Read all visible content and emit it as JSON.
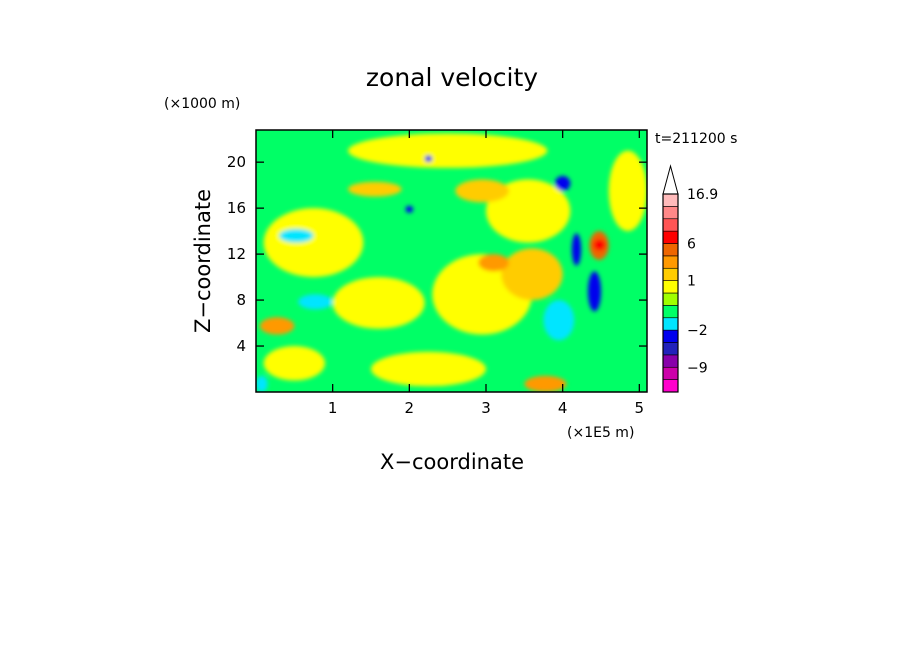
{
  "chart_data": {
    "type": "heatmap",
    "title": "zonal velocity",
    "xlabel": "X−coordinate",
    "ylabel": "Z−coordinate",
    "x_unit_label": "(×1E5 m)",
    "y_unit_label": "(×1000 m)",
    "time_label": "t=211200 s",
    "xlim": [
      0,
      5.1
    ],
    "ylim": [
      0,
      22.8
    ],
    "x_ticks": [
      1,
      2,
      3,
      4,
      5
    ],
    "y_ticks": [
      4,
      8,
      12,
      16,
      20
    ],
    "colorbar_labels": [
      {
        "text": "16.9",
        "value": 16.9
      },
      {
        "text": "6",
        "value": 6
      },
      {
        "text": "1",
        "value": 1
      },
      {
        "text": "−2",
        "value": -2
      },
      {
        "text": "−9",
        "value": -9
      }
    ],
    "levels": [
      {
        "min": null,
        "max": -12,
        "color": "#ff00cc"
      },
      {
        "min": -12,
        "max": -9,
        "color": "#cc00aa"
      },
      {
        "min": -9,
        "max": -6,
        "color": "#8800aa"
      },
      {
        "min": -6,
        "max": -4,
        "color": "#2222bb"
      },
      {
        "min": -4,
        "max": -2,
        "color": "#0000ee"
      },
      {
        "min": -2,
        "max": -1,
        "color": "#00e5ff"
      },
      {
        "min": -1,
        "max": 0,
        "color": "#00ff66"
      },
      {
        "min": 0,
        "max": 0.5,
        "color": "#a0ff00"
      },
      {
        "min": 0.5,
        "max": 1,
        "color": "#ffff00"
      },
      {
        "min": 1,
        "max": 2,
        "color": "#ffcc00"
      },
      {
        "min": 2,
        "max": 4,
        "color": "#ff9900"
      },
      {
        "min": 4,
        "max": 6,
        "color": "#ee6600"
      },
      {
        "min": 6,
        "max": 9,
        "color": "#ff0000"
      },
      {
        "min": 9,
        "max": 12,
        "color": "#ff5555"
      },
      {
        "min": 12,
        "max": 15,
        "color": "#ff8888"
      },
      {
        "min": 15,
        "max": 16.9,
        "color": "#ffbbbb"
      },
      {
        "min": 16.9,
        "max": null,
        "color": "#ffffff"
      }
    ],
    "regions": [
      {
        "x": [
          0.0,
          5.1
        ],
        "z": [
          0.0,
          22.8
        ],
        "value": -0.5,
        "label": "background (green)"
      },
      {
        "x": [
          0.1,
          1.4
        ],
        "z": [
          10.0,
          16.0
        ],
        "value": 0.8
      },
      {
        "x": [
          1.0,
          2.2
        ],
        "z": [
          5.5,
          10.0
        ],
        "value": 0.8
      },
      {
        "x": [
          0.1,
          0.9
        ],
        "z": [
          1.0,
          4.0
        ],
        "value": 0.8
      },
      {
        "x": [
          1.5,
          3.0
        ],
        "z": [
          0.5,
          3.5
        ],
        "value": 0.8
      },
      {
        "x": [
          2.3,
          3.6
        ],
        "z": [
          5.0,
          12.0
        ],
        "value": 0.8
      },
      {
        "x": [
          3.0,
          4.1
        ],
        "z": [
          13.0,
          18.5
        ],
        "value": 0.8
      },
      {
        "x": [
          1.2,
          3.8
        ],
        "z": [
          19.5,
          22.5
        ],
        "value": 0.8
      },
      {
        "x": [
          4.6,
          5.1
        ],
        "z": [
          14.0,
          21.0
        ],
        "value": 0.8
      },
      {
        "x": [
          2.6,
          3.3
        ],
        "z": [
          16.5,
          18.5
        ],
        "value": 1.5
      },
      {
        "x": [
          1.2,
          1.9
        ],
        "z": [
          17.0,
          18.3
        ],
        "value": 1.5
      },
      {
        "x": [
          3.2,
          4.0
        ],
        "z": [
          8.0,
          12.5
        ],
        "value": 1.5
      },
      {
        "x": [
          3.5,
          4.05
        ],
        "z": [
          0.0,
          1.4
        ],
        "value": 3.0
      },
      {
        "x": [
          0.05,
          0.5
        ],
        "z": [
          5.0,
          6.5
        ],
        "value": 3.0
      },
      {
        "x": [
          2.9,
          3.3
        ],
        "z": [
          10.5,
          12.0
        ],
        "value": 3.0
      },
      {
        "x": [
          4.35,
          4.6
        ],
        "z": [
          11.5,
          14.0
        ],
        "value": 5.0
      },
      {
        "x": [
          4.4,
          4.56
        ],
        "z": [
          12.3,
          13.3
        ],
        "value": 7.0
      },
      {
        "x": [
          3.75,
          4.15
        ],
        "z": [
          4.5,
          8.0
        ],
        "value": -1.5
      },
      {
        "x": [
          0.3,
          0.75
        ],
        "z": [
          13.0,
          14.2
        ],
        "value": -1.5
      },
      {
        "x": [
          0.55,
          1.0
        ],
        "z": [
          7.2,
          8.5
        ],
        "value": -1.5
      },
      {
        "x": [
          0.0,
          0.15
        ],
        "z": [
          0.0,
          1.4
        ],
        "value": -1.5
      },
      {
        "x": [
          4.12,
          4.24
        ],
        "z": [
          11.0,
          13.8
        ],
        "value": -3.0
      },
      {
        "x": [
          4.33,
          4.5
        ],
        "z": [
          7.0,
          10.5
        ],
        "value": -3.0
      },
      {
        "x": [
          3.9,
          4.1
        ],
        "z": [
          17.5,
          18.8
        ],
        "value": -3.0
      },
      {
        "x": [
          2.2,
          2.3
        ],
        "z": [
          20.0,
          20.6
        ],
        "value": -3.0
      },
      {
        "x": [
          1.95,
          2.05
        ],
        "z": [
          15.6,
          16.2
        ],
        "value": -3.0
      }
    ]
  }
}
